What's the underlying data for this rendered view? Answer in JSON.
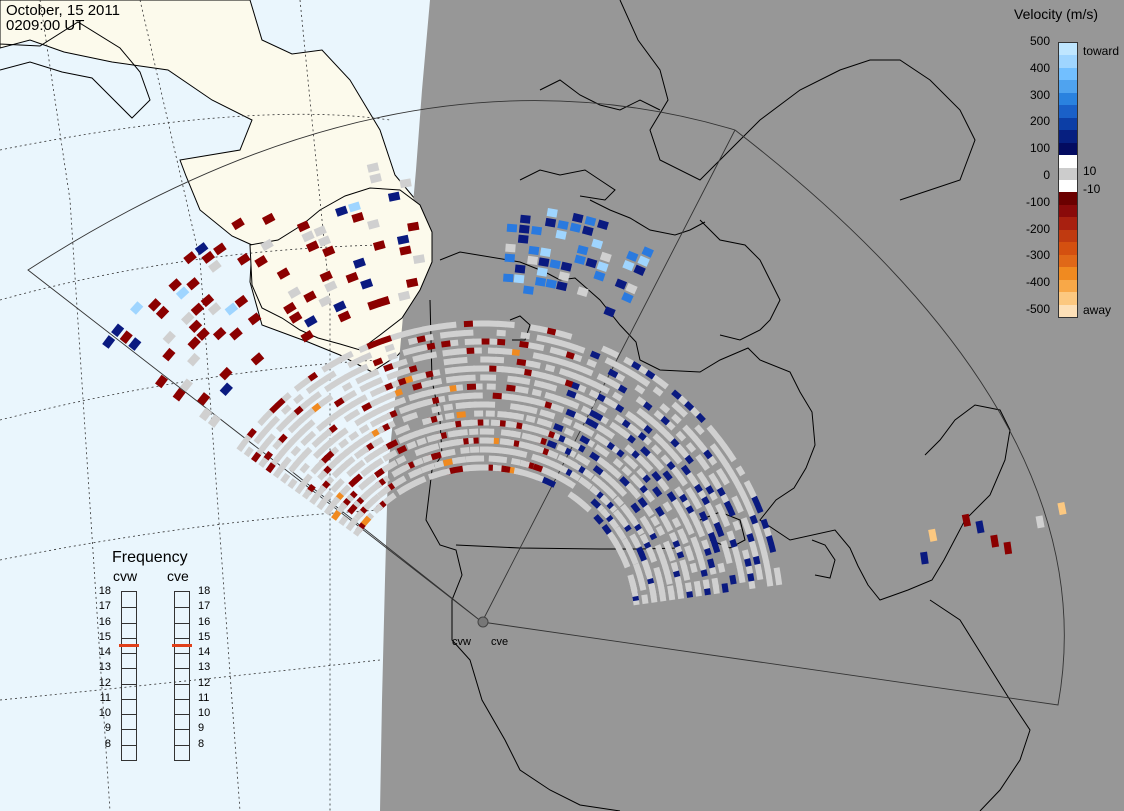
{
  "header": {
    "date": "October, 15 2011",
    "time": "0209:00 UT"
  },
  "colors": {
    "ocean": "#eaf6fd",
    "land_day": "#fcfaec",
    "night_shade": "#979797",
    "ground_scatter": "#d0d0d0",
    "coastline": "#000000"
  },
  "velocity_scale": {
    "title": "Velocity (m/s)",
    "ticks": [
      "500",
      "400",
      "300",
      "200",
      "100",
      "0",
      "-100",
      "-200",
      "-300",
      "-400",
      "-500"
    ],
    "extra_labels": [
      "10",
      "-10"
    ],
    "toward_label": "toward",
    "away_label": "away",
    "colors": [
      "#bfe6ff",
      "#9fd5ff",
      "#72bfff",
      "#4fa3ef",
      "#2a82df",
      "#1a60c8",
      "#0c3ea6",
      "#061f80",
      "#030b60",
      "#ffffff",
      "#cccccc",
      "#ffffff",
      "#6b0000",
      "#8a0a0a",
      "#a82010",
      "#c03a10",
      "#d45010",
      "#e06818",
      "#f08a20",
      "#f8a848",
      "#fcc880",
      "#fde0b8"
    ]
  },
  "frequency": {
    "title": "Frequency",
    "radars": [
      "cvw",
      "cve"
    ],
    "scale": [
      "18",
      "17",
      "16",
      "15",
      "14",
      "13",
      "12",
      "11",
      "10",
      "9",
      "8"
    ],
    "values_mhz": [
      15,
      15
    ]
  },
  "sites": [
    "cvw",
    "cve"
  ]
}
